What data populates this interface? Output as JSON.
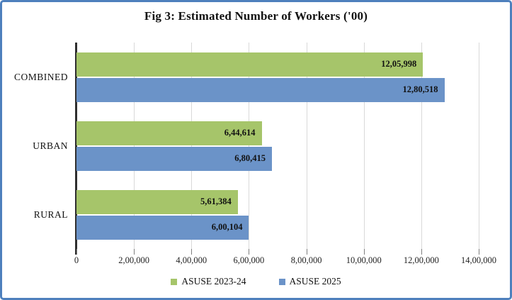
{
  "title": "Fig 3: Estimated Number of Workers ('00)",
  "chart_data": {
    "type": "bar",
    "orientation": "horizontal",
    "title": "Fig 3: Estimated Number of Workers ('00)",
    "categories": [
      "COMBINED",
      "URBAN",
      "RURAL"
    ],
    "series": [
      {
        "name": "ASUSE 2023-24",
        "color": "#a6c56a",
        "values": [
          1205998,
          644614,
          561384
        ],
        "data_labels": [
          "12,05,998",
          "6,44,614",
          "5,61,384"
        ]
      },
      {
        "name": "ASUSE 2025",
        "color": "#6b93c8",
        "values": [
          1280518,
          680415,
          600104
        ],
        "data_labels": [
          "12,80,518",
          "6,80,415",
          "6,00,104"
        ]
      }
    ],
    "xlim": [
      0,
      1400000
    ],
    "x_tick_interval": 200000,
    "x_tick_labels": [
      "0",
      "2,00,000",
      "4,00,000",
      "6,00,000",
      "8,00,000",
      "10,00,000",
      "12,00,000",
      "14,00,000"
    ],
    "grid": "vertical",
    "legend_position": "bottom"
  },
  "colors": {
    "series_green": "#a6c56a",
    "series_blue": "#6b93c8",
    "frame_border": "#4e80bd",
    "axis_line": "#2f2f2f",
    "gridline": "#d9d9d9",
    "tick": "#7f7f7f",
    "text": "#111111"
  }
}
